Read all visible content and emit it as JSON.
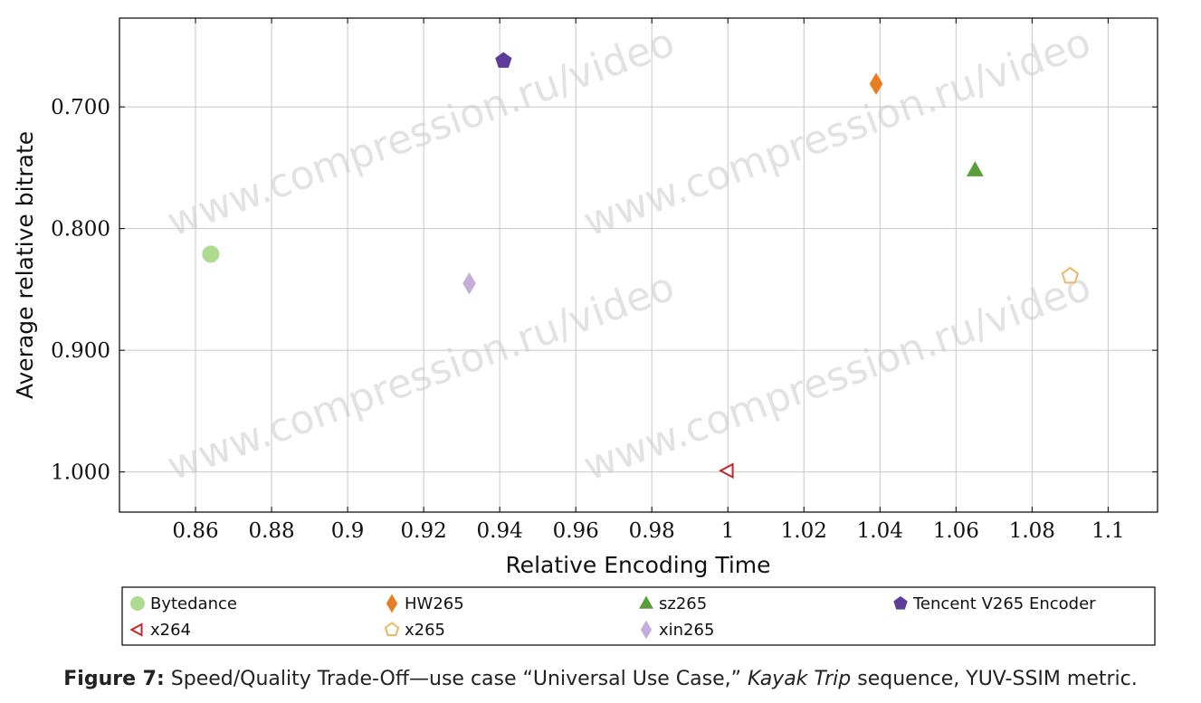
{
  "chart_data": {
    "type": "scatter",
    "xlabel": "Relative Encoding Time",
    "ylabel": "Average relative bitrate",
    "xlim": [
      0.84,
      1.113
    ],
    "ylim": [
      1.033,
      0.627
    ],
    "y_inverted": true,
    "grid": true,
    "x_ticks": [
      "0.86",
      "0.88",
      "0.9",
      "0.92",
      "0.94",
      "0.96",
      "0.98",
      "1",
      "1.02",
      "1.04",
      "1.06",
      "1.08",
      "1.1"
    ],
    "y_ticks": [
      "0.700",
      "0.800",
      "0.900",
      "1.000"
    ],
    "legend_position": "bottom",
    "series": [
      {
        "name": "Bytedance",
        "color": "#addc91",
        "marker": "circle",
        "filled": true,
        "x": 0.864,
        "y": 0.821
      },
      {
        "name": "HW265",
        "color": "#e87d21",
        "marker": "diamond",
        "filled": true,
        "x": 1.039,
        "y": 0.681
      },
      {
        "name": "sz265",
        "color": "#5a9e3a",
        "marker": "triangle-up",
        "filled": true,
        "x": 1.065,
        "y": 0.752
      },
      {
        "name": "Tencent V265 Encoder",
        "color": "#5e3c99",
        "marker": "pentagon",
        "filled": true,
        "x": 0.941,
        "y": 0.662
      },
      {
        "name": "x264",
        "color": "#c0282d",
        "marker": "triangle-left",
        "filled": false,
        "x": 1.0,
        "y": 0.999
      },
      {
        "name": "x265",
        "color": "#e8b866",
        "marker": "pentagon",
        "filled": false,
        "x": 1.09,
        "y": 0.839
      },
      {
        "name": "xin265",
        "color": "#c2aed8",
        "marker": "diamond",
        "filled": true,
        "x": 0.932,
        "y": 0.845
      }
    ]
  },
  "watermark_text": "www.compression.ru/video",
  "caption": {
    "figure_label": "Figure 7:",
    "text_before": " Speed/Quality Trade-Off—use case “Universal Use Case,” ",
    "sequence": "Kayak Trip",
    "text_after": " sequence, YUV-SSIM metric."
  }
}
